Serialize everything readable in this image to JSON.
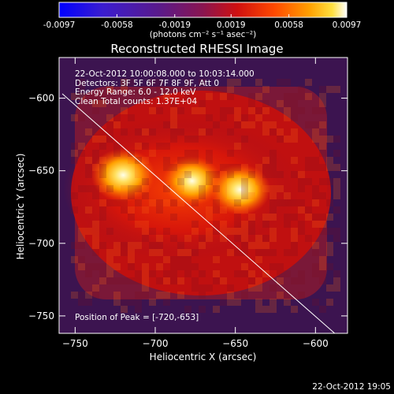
{
  "chart_data": {
    "type": "heatmap",
    "title": "Reconstructed RHESSI Image",
    "xlabel": "Heliocentric X (arcsec)",
    "ylabel": "Heliocentric Y (arcsec)",
    "xlim": [
      -760,
      -580
    ],
    "ylim": [
      -762,
      -572
    ],
    "xticks": [
      -750,
      -700,
      -650,
      -600
    ],
    "yticks": [
      -600,
      -650,
      -700,
      -750
    ],
    "colorbar": {
      "colormap": "heat (blue-purple-red-orange-yellow-white)",
      "range": [
        -0.0097,
        0.0097
      ],
      "ticks": [
        -0.0097,
        -0.0058,
        -0.0019,
        0.0019,
        0.0058,
        0.0097
      ],
      "units": "(photons cm⁻² s⁻¹ asec⁻²)"
    },
    "sources": [
      {
        "x": -720,
        "y": -653,
        "relative_intensity": 1.0
      },
      {
        "x": -677,
        "y": -657,
        "relative_intensity": 0.92
      },
      {
        "x": -647,
        "y": -663,
        "relative_intensity": 0.95
      }
    ],
    "limb_line": {
      "from": [
        -758,
        -597
      ],
      "to": [
        -588,
        -762
      ]
    }
  },
  "header": {
    "title": "Reconstructed RHESSI Image",
    "cb_units": "(photons cm⁻² s⁻¹ asec⁻²)"
  },
  "info": {
    "line1": "22-Oct-2012 10:00:08.000 to 10:03:14.000",
    "line2": "Detectors: 3F 5F 6F 7F 8F 9F, Att 0",
    "line3": "Energy Range: 6.0 - 12.0 keV",
    "line4": "Clean     Total counts: 1.37E+04"
  },
  "peak_text": "Position of Peak = [-720,-653]",
  "xlabel": "Heliocentric X (arcsec)",
  "ylabel": "Heliocentric Y (arcsec)",
  "timestamp": "22-Oct-2012 19:05",
  "colors": {
    "background": "#000000",
    "text": "#ffffff"
  }
}
